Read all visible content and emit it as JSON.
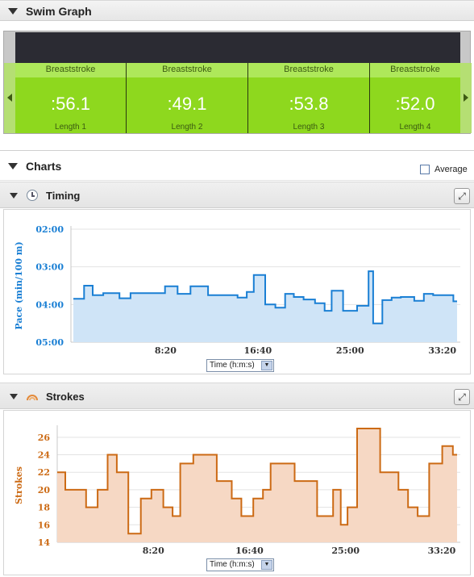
{
  "swim_graph": {
    "title": "Swim Graph",
    "laps": [
      {
        "stroke": "Breaststroke",
        "time": ":56.1",
        "length": "Length 1"
      },
      {
        "stroke": "Breaststroke",
        "time": ":49.1",
        "length": "Length 2"
      },
      {
        "stroke": "Breaststroke",
        "time": ":53.8",
        "length": "Length 3"
      },
      {
        "stroke": "Breaststroke",
        "time": ":52.0",
        "length": "Length 4"
      }
    ]
  },
  "charts": {
    "title": "Charts",
    "average_label": "Average",
    "average_checked": false,
    "timing": {
      "title": "Timing",
      "x_select": "Time (h:m:s)",
      "icon": "clock-icon"
    },
    "strokes": {
      "title": "Strokes",
      "x_select": "Time (h:m:s)",
      "icon": "strokes-icon"
    }
  },
  "chart_data": [
    {
      "type": "area",
      "title": "Timing",
      "ylabel": "Pace (min/100 m)",
      "xlabel": "",
      "x_ticks": [
        "8:20",
        "16:40",
        "25:00",
        "33:20"
      ],
      "x_tick_values": [
        500,
        1000,
        1500,
        2000
      ],
      "y_ticks": [
        "02:00",
        "03:00",
        "04:00",
        "05:00"
      ],
      "y_tick_values": [
        120,
        180,
        240,
        300
      ],
      "y_inverted": true,
      "xlim": [
        0,
        2080
      ],
      "ylim": [
        120,
        300
      ],
      "color": "#1a7fd4",
      "fill": "#cfe4f7",
      "grid": true,
      "x": [
        0,
        58,
        105,
        162,
        208,
        250,
        310,
        365,
        420,
        497,
        565,
        635,
        730,
        800,
        890,
        940,
        978,
        1040,
        1095,
        1148,
        1195,
        1248,
        1310,
        1362,
        1400,
        1462,
        1538,
        1600,
        1625,
        1675,
        1725,
        1775,
        1848,
        1900,
        1950,
        2060
      ],
      "y": [
        231,
        210,
        225,
        222,
        222,
        230,
        222,
        222,
        222,
        211,
        223,
        211,
        225,
        225,
        229,
        220,
        193,
        240,
        245,
        223,
        228,
        232,
        238,
        250,
        218,
        250,
        242,
        187,
        270,
        233,
        229,
        228,
        234,
        223,
        225,
        235
      ]
    },
    {
      "type": "area",
      "title": "Strokes",
      "ylabel": "Strokes",
      "xlabel": "",
      "x_ticks": [
        "8:20",
        "16:40",
        "25:00",
        "33:20"
      ],
      "x_tick_values": [
        500,
        1000,
        1500,
        2000
      ],
      "y_ticks": [
        "14",
        "16",
        "18",
        "20",
        "22",
        "24",
        "26"
      ],
      "y_tick_values": [
        14,
        16,
        18,
        20,
        22,
        24,
        26
      ],
      "xlim": [
        0,
        2080
      ],
      "ylim": [
        14,
        27
      ],
      "color": "#cc6a14",
      "fill": "#f6d8c4",
      "grid": true,
      "x": [
        0,
        42,
        150,
        210,
        262,
        310,
        370,
        435,
        490,
        552,
        600,
        640,
        708,
        830,
        908,
        958,
        1020,
        1070,
        1110,
        1235,
        1352,
        1435,
        1475,
        1510,
        1560,
        1680,
        1775,
        1825,
        1875,
        1935,
        2003,
        2058
      ],
      "y": [
        22,
        20,
        18,
        20,
        24,
        22,
        15,
        19,
        20,
        18,
        17,
        23,
        24,
        21,
        19,
        17,
        19,
        20,
        23,
        21,
        17,
        20,
        16,
        18,
        27,
        22,
        20,
        18,
        17,
        23,
        25,
        24
      ]
    }
  ]
}
